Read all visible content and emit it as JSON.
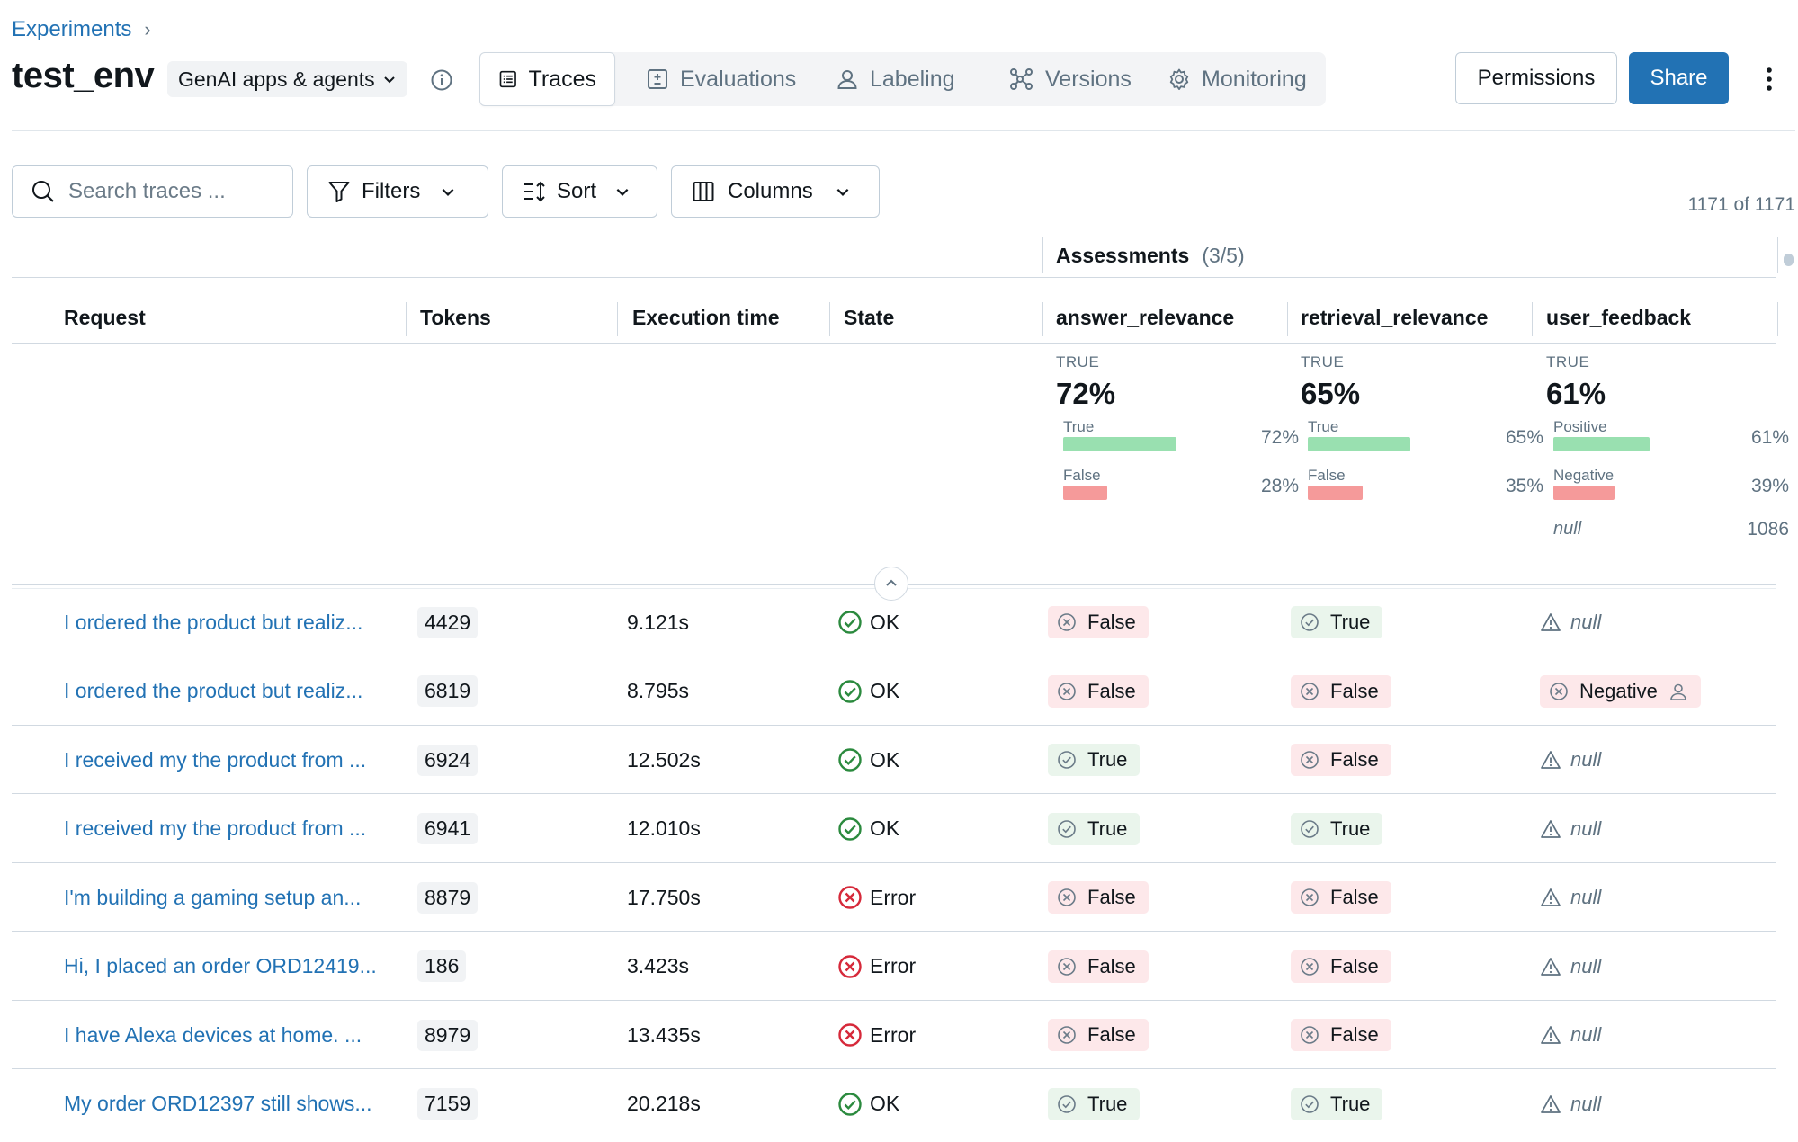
{
  "breadcrumb": {
    "root": "Experiments",
    "separator": "›"
  },
  "header": {
    "title": "test_env",
    "type_label": "GenAI apps & agents"
  },
  "tabs": [
    {
      "label": "Traces",
      "icon": "list-icon",
      "active": true
    },
    {
      "label": "Evaluations",
      "icon": "plus-minus-icon",
      "active": false
    },
    {
      "label": "Labeling",
      "icon": "user-icon",
      "active": false
    },
    {
      "label": "Versions",
      "icon": "nodes-icon",
      "active": false
    },
    {
      "label": "Monitoring",
      "icon": "gear-icon",
      "active": false
    }
  ],
  "actions": {
    "permissions": "Permissions",
    "share": "Share"
  },
  "toolbar": {
    "search_placeholder": "Search traces ...",
    "filters": "Filters",
    "sort": "Sort",
    "columns": "Columns",
    "count": "1171 of 1171"
  },
  "table": {
    "assessments_label": "Assessments",
    "assessments_count": "(3/5)",
    "columns": [
      "Request",
      "Tokens",
      "Execution time",
      "State",
      "answer_relevance",
      "retrieval_relevance",
      "user_feedback"
    ]
  },
  "summary": [
    {
      "label": "TRUE",
      "value": "72%",
      "rows": [
        {
          "label": "True",
          "pct": "72%",
          "fraction": 0.72,
          "color": "#99e0b0"
        },
        {
          "label": "False",
          "pct": "28%",
          "fraction": 0.28,
          "color": "#f59a9a"
        }
      ]
    },
    {
      "label": "TRUE",
      "value": "65%",
      "rows": [
        {
          "label": "True",
          "pct": "65%",
          "fraction": 0.65,
          "color": "#99e0b0"
        },
        {
          "label": "False",
          "pct": "35%",
          "fraction": 0.35,
          "color": "#f59a9a"
        }
      ]
    },
    {
      "label": "TRUE",
      "value": "61%",
      "rows": [
        {
          "label": "Positive",
          "pct": "61%",
          "fraction": 0.61,
          "color": "#99e0b0"
        },
        {
          "label": "Negative",
          "pct": "39%",
          "fraction": 0.39,
          "color": "#f59a9a"
        }
      ],
      "null_label": "null",
      "null_count": "1086"
    }
  ],
  "rows": [
    {
      "request": "I ordered the product but realiz...",
      "tokens": "4429",
      "exec": "9.121s",
      "state": "OK",
      "answer": "False",
      "retrieval": "True",
      "feedback": "null"
    },
    {
      "request": "I ordered the product but realiz...",
      "tokens": "6819",
      "exec": "8.795s",
      "state": "OK",
      "answer": "False",
      "retrieval": "False",
      "feedback": "Negative"
    },
    {
      "request": "I received my the product from ...",
      "tokens": "6924",
      "exec": "12.502s",
      "state": "OK",
      "answer": "True",
      "retrieval": "False",
      "feedback": "null"
    },
    {
      "request": "I received my the product from ...",
      "tokens": "6941",
      "exec": "12.010s",
      "state": "OK",
      "answer": "True",
      "retrieval": "True",
      "feedback": "null"
    },
    {
      "request": "I'm building a gaming setup an...",
      "tokens": "8879",
      "exec": "17.750s",
      "state": "Error",
      "answer": "False",
      "retrieval": "False",
      "feedback": "null"
    },
    {
      "request": "Hi, I placed an order ORD12419...",
      "tokens": "186",
      "exec": "3.423s",
      "state": "Error",
      "answer": "False",
      "retrieval": "False",
      "feedback": "null"
    },
    {
      "request": "I have Alexa devices at home. ...",
      "tokens": "8979",
      "exec": "13.435s",
      "state": "Error",
      "answer": "False",
      "retrieval": "False",
      "feedback": "null"
    },
    {
      "request": "My order ORD12397 still shows...",
      "tokens": "7159",
      "exec": "20.218s",
      "state": "OK",
      "answer": "True",
      "retrieval": "True",
      "feedback": "null"
    }
  ],
  "colors": {
    "accent": "#2272b4",
    "ok": "#2b8a3e",
    "error": "#d6293a",
    "true_bg": "#eaf5ec",
    "false_bg": "#fde8ea"
  }
}
